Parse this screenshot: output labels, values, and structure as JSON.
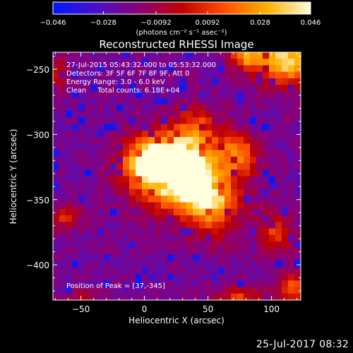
{
  "chart_data": {
    "type": "heatmap",
    "title": "Reconstructed RHESSI Image",
    "xlabel": "Heliocentric X (arcsec)",
    "ylabel": "Heliocentric Y (arcsec)",
    "xlim": [
      -72,
      123
    ],
    "ylim": [
      -427,
      -237
    ],
    "x_ticks": [
      -50,
      0,
      50,
      100
    ],
    "y_ticks": [
      -250,
      -300,
      -350,
      -400
    ],
    "colorbar": {
      "min": -0.046,
      "max": 0.046,
      "ticks": [
        -0.046,
        -0.028,
        -0.0092,
        0.0092,
        0.028,
        0.046
      ],
      "tick_labels": [
        "−0.046",
        "−0.028",
        "−0.0092",
        "0.0092",
        "0.028",
        "0.046"
      ],
      "unit_label": "(photons cm⁻² s⁻¹ asec⁻²)",
      "color_stops": [
        "#0018ff",
        "#4a10c8",
        "#8a0078",
        "#c00000",
        "#ff5000",
        "#ffb000",
        "#ffffe0"
      ]
    },
    "annotations": [
      "27-Jul-2015 05:43:32.000 to 05:53:32.000",
      "Detectors: 3F 5F 6F 7F 8F 9F, Att 0",
      "Energy Range: 3.0 - 6.0 keV",
      "Clean     Total counts: 6.18E+04"
    ],
    "peak_label": "Position of Peak = [37,-345]",
    "peak": {
      "x": 37,
      "y": -345
    },
    "background_value": -0.02,
    "sources": [
      {
        "x": 33,
        "y": -336,
        "sx": 24,
        "sy": 17,
        "amp": 0.068
      },
      {
        "x": 16,
        "y": -318,
        "sx": 18,
        "sy": 14,
        "amp": 0.05
      },
      {
        "x": 0,
        "y": -323,
        "sx": 14,
        "sy": 12,
        "amp": 0.03
      },
      {
        "x": 54,
        "y": -357,
        "sx": 14,
        "sy": 16,
        "amp": 0.034
      },
      {
        "x": 40,
        "y": -298,
        "sx": 12,
        "sy": 14,
        "amp": 0.034
      },
      {
        "x": 70,
        "y": -310,
        "sx": 10,
        "sy": 10,
        "amp": 0.024
      },
      {
        "x": 78,
        "y": -318,
        "sx": 8,
        "sy": 10,
        "amp": 0.018
      },
      {
        "x": 112,
        "y": -244,
        "sx": 18,
        "sy": 12,
        "amp": 0.06
      },
      {
        "x": 80,
        "y": -240,
        "sx": 9,
        "sy": 6,
        "amp": 0.04
      },
      {
        "x": -62,
        "y": -363,
        "sx": 9,
        "sy": 7,
        "amp": 0.025
      },
      {
        "x": 103,
        "y": -376,
        "sx": 9,
        "sy": 11,
        "amp": 0.028
      },
      {
        "x": 117,
        "y": -418,
        "sx": 8,
        "sy": 8,
        "amp": 0.035
      },
      {
        "x": 75,
        "y": -424,
        "sx": 12,
        "sy": 5,
        "amp": 0.03
      },
      {
        "x": -48,
        "y": -425,
        "sx": 8,
        "sy": 4,
        "amp": 0.02
      },
      {
        "x": -68,
        "y": -252,
        "sx": 6,
        "sy": 10,
        "amp": 0.018
      }
    ]
  },
  "footer": {
    "date": "25-Jul-2017 08:32"
  }
}
